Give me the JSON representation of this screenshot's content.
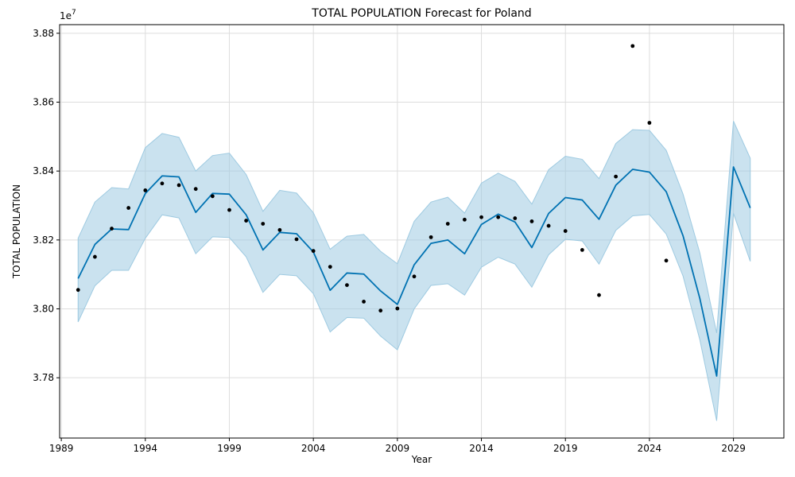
{
  "chart_data": {
    "type": "line",
    "title": "TOTAL POPULATION Forecast for Poland",
    "xlabel": "Year",
    "ylabel": "TOTAL POPULATION",
    "offset_label": "1e7",
    "xlim": [
      1988.9,
      2032.0
    ],
    "ylim": [
      3.7625,
      3.8825
    ],
    "x_ticks": [
      1989,
      1994,
      1999,
      2004,
      2009,
      2014,
      2019,
      2024,
      2029
    ],
    "x_tick_labels": [
      "1989",
      "1994",
      "1999",
      "2004",
      "2009",
      "2014",
      "2019",
      "2024",
      "2029"
    ],
    "y_ticks": [
      3.78,
      3.8,
      3.82,
      3.84,
      3.86,
      3.88
    ],
    "y_tick_labels": [
      "3.78",
      "3.80",
      "3.82",
      "3.84",
      "3.86",
      "3.88"
    ],
    "grid": true,
    "colors": {
      "forecast": "#0072B2",
      "band": "#9ECAE1",
      "points": "#000000"
    },
    "series": [
      {
        "kind": "observed_points",
        "x": [
          1990,
          1991,
          1992,
          1993,
          1994,
          1995,
          1996,
          1997,
          1998,
          1999,
          2000,
          2001,
          2002,
          2003,
          2004,
          2005,
          2006,
          2007,
          2008,
          2009,
          2010,
          2011,
          2012,
          2013,
          2014,
          2015,
          2016,
          2017,
          2018,
          2019,
          2020,
          2021,
          2022,
          2023,
          2024,
          2025
        ],
        "values": [
          3.8055,
          3.8151,
          3.8233,
          3.8293,
          3.8344,
          3.8364,
          3.8359,
          3.8348,
          3.8327,
          3.8287,
          3.8256,
          3.8247,
          3.8229,
          3.8202,
          3.8168,
          3.8122,
          3.8069,
          3.8021,
          3.7995,
          3.8001,
          3.8094,
          3.8208,
          3.8247,
          3.8259,
          3.8266,
          3.8266,
          3.8263,
          3.8254,
          3.8241,
          3.8226,
          3.8171,
          3.804,
          3.8384,
          3.8763,
          3.854,
          3.814
        ]
      },
      {
        "kind": "forecast_line",
        "x": [
          1990,
          1991,
          1992,
          1993,
          1994,
          1995,
          1996,
          1997,
          1998,
          1999,
          2000,
          2001,
          2002,
          2003,
          2004,
          2005,
          2006,
          2007,
          2008,
          2009,
          2010,
          2011,
          2012,
          2013,
          2014,
          2015,
          2016,
          2017,
          2018,
          2019,
          2020,
          2021,
          2022,
          2023,
          2024,
          2025,
          2026,
          2027,
          2028,
          2029,
          2030
        ],
        "values": [
          3.8088,
          3.8187,
          3.8232,
          3.823,
          3.8335,
          3.8386,
          3.8383,
          3.828,
          3.8335,
          3.8333,
          3.8273,
          3.8171,
          3.8222,
          3.8218,
          3.8165,
          3.8054,
          3.8104,
          3.8101,
          3.8052,
          3.8013,
          3.8128,
          3.819,
          3.82,
          3.816,
          3.8245,
          3.8275,
          3.8252,
          3.8178,
          3.8277,
          3.8323,
          3.8316,
          3.826,
          3.8359,
          3.8405,
          3.8397,
          3.834,
          3.8212,
          3.803,
          3.7805,
          3.8412,
          3.8293
        ],
        "lower": [
          3.7962,
          3.8067,
          3.8112,
          3.8112,
          3.8205,
          3.8273,
          3.8264,
          3.816,
          3.8209,
          3.8207,
          3.8151,
          3.8048,
          3.81,
          3.8096,
          3.8044,
          3.7933,
          3.7975,
          3.7973,
          3.7921,
          3.7881,
          3.8,
          3.8068,
          3.8073,
          3.804,
          3.8121,
          3.815,
          3.813,
          3.8063,
          3.8157,
          3.8202,
          3.8197,
          3.813,
          3.8228,
          3.827,
          3.8274,
          3.8217,
          3.8095,
          3.791,
          3.7675,
          3.8277,
          3.8138
        ],
        "upper": [
          3.8205,
          3.831,
          3.8352,
          3.8348,
          3.8468,
          3.8509,
          3.8498,
          3.84,
          3.8445,
          3.8452,
          3.839,
          3.8283,
          3.8344,
          3.8336,
          3.8279,
          3.8173,
          3.8211,
          3.8216,
          3.8167,
          3.8131,
          3.8254,
          3.831,
          3.8324,
          3.8278,
          3.8365,
          3.8394,
          3.837,
          3.8304,
          3.8404,
          3.8443,
          3.8434,
          3.8378,
          3.848,
          3.852,
          3.8518,
          3.846,
          3.8333,
          3.8162,
          3.793,
          3.8545,
          3.8437
        ]
      }
    ]
  }
}
